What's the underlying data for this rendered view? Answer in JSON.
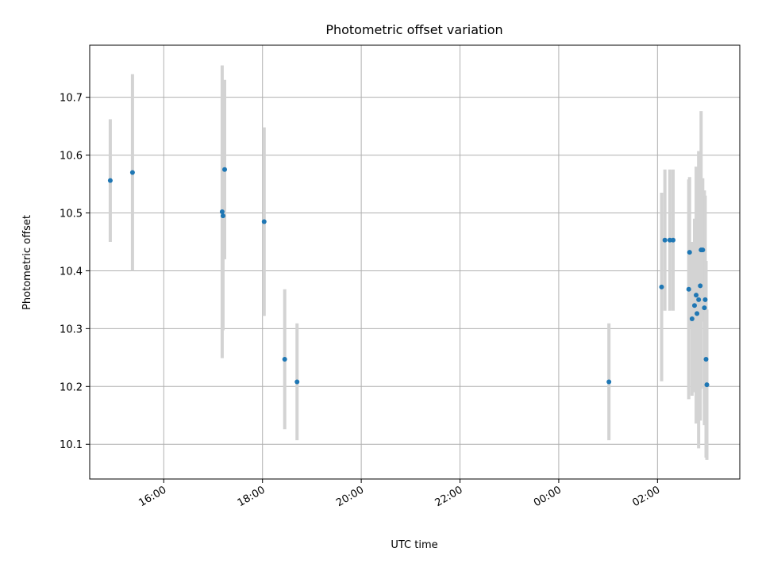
{
  "chart_data": {
    "type": "scatter",
    "title": "Photometric offset variation",
    "xlabel": "UTC time",
    "ylabel": "Photometric offset",
    "x_axis_type": "time",
    "xlim": [
      "14:30",
      "03:40"
    ],
    "ylim": [
      10.04,
      10.79
    ],
    "grid": true,
    "x_ticks": [
      {
        "value": "16:00",
        "label": "16:00"
      },
      {
        "value": "18:00",
        "label": "18:00"
      },
      {
        "value": "20:00",
        "label": "20:00"
      },
      {
        "value": "22:00",
        "label": "22:00"
      },
      {
        "value": "00:00",
        "label": "00:00"
      },
      {
        "value": "02:00",
        "label": "02:00"
      }
    ],
    "y_ticks": [
      10.1,
      10.2,
      10.3,
      10.4,
      10.5,
      10.6,
      10.7
    ],
    "y_tick_labels": [
      "10.1",
      "10.2",
      "10.3",
      "10.4",
      "10.5",
      "10.6",
      "10.7"
    ],
    "marker_color": "#1f77b4",
    "errorbar_color": "#d3d3d3",
    "series": [
      {
        "points": [
          {
            "x": "14:55",
            "y": 10.556,
            "yerr": 0.106
          },
          {
            "x": "15:22",
            "y": 10.57,
            "yerr": 0.17
          },
          {
            "x": "17:11",
            "y": 10.502,
            "yerr": 0.253
          },
          {
            "x": "17:12",
            "y": 10.495,
            "yerr": 0.198
          },
          {
            "x": "17:14",
            "y": 10.575,
            "yerr": 0.155
          },
          {
            "x": "18:02",
            "y": 10.485,
            "yerr": 0.163
          },
          {
            "x": "18:27",
            "y": 10.247,
            "yerr": 0.121
          },
          {
            "x": "18:42",
            "y": 10.208,
            "yerr": 0.101
          },
          {
            "x": "01:01",
            "y": 10.208,
            "yerr": 0.101
          },
          {
            "x": "02:05",
            "y": 10.372,
            "yerr": 0.163
          },
          {
            "x": "02:09",
            "y": 10.453,
            "yerr": 0.122
          },
          {
            "x": "02:15",
            "y": 10.453,
            "yerr": 0.122
          },
          {
            "x": "02:19",
            "y": 10.453,
            "yerr": 0.122
          },
          {
            "x": "02:38",
            "y": 10.368,
            "yerr": 0.19
          },
          {
            "x": "02:39",
            "y": 10.432,
            "yerr": 0.13
          },
          {
            "x": "02:42",
            "y": 10.317,
            "yerr": 0.133
          },
          {
            "x": "02:45",
            "y": 10.34,
            "yerr": 0.15
          },
          {
            "x": "02:47",
            "y": 10.358,
            "yerr": 0.222
          },
          {
            "x": "02:48",
            "y": 10.326,
            "yerr": 0.19
          },
          {
            "x": "02:50",
            "y": 10.35,
            "yerr": 0.257
          },
          {
            "x": "02:52",
            "y": 10.374,
            "yerr": 0.233
          },
          {
            "x": "02:53",
            "y": 10.436,
            "yerr": 0.24
          },
          {
            "x": "02:55",
            "y": 10.436,
            "yerr": 0.124
          },
          {
            "x": "02:57",
            "y": 10.336,
            "yerr": 0.203
          },
          {
            "x": "02:58",
            "y": 10.35,
            "yerr": 0.18
          },
          {
            "x": "02:59",
            "y": 10.247,
            "yerr": 0.17
          },
          {
            "x": "03:00",
            "y": 10.203,
            "yerr": 0.13
          }
        ]
      }
    ]
  }
}
